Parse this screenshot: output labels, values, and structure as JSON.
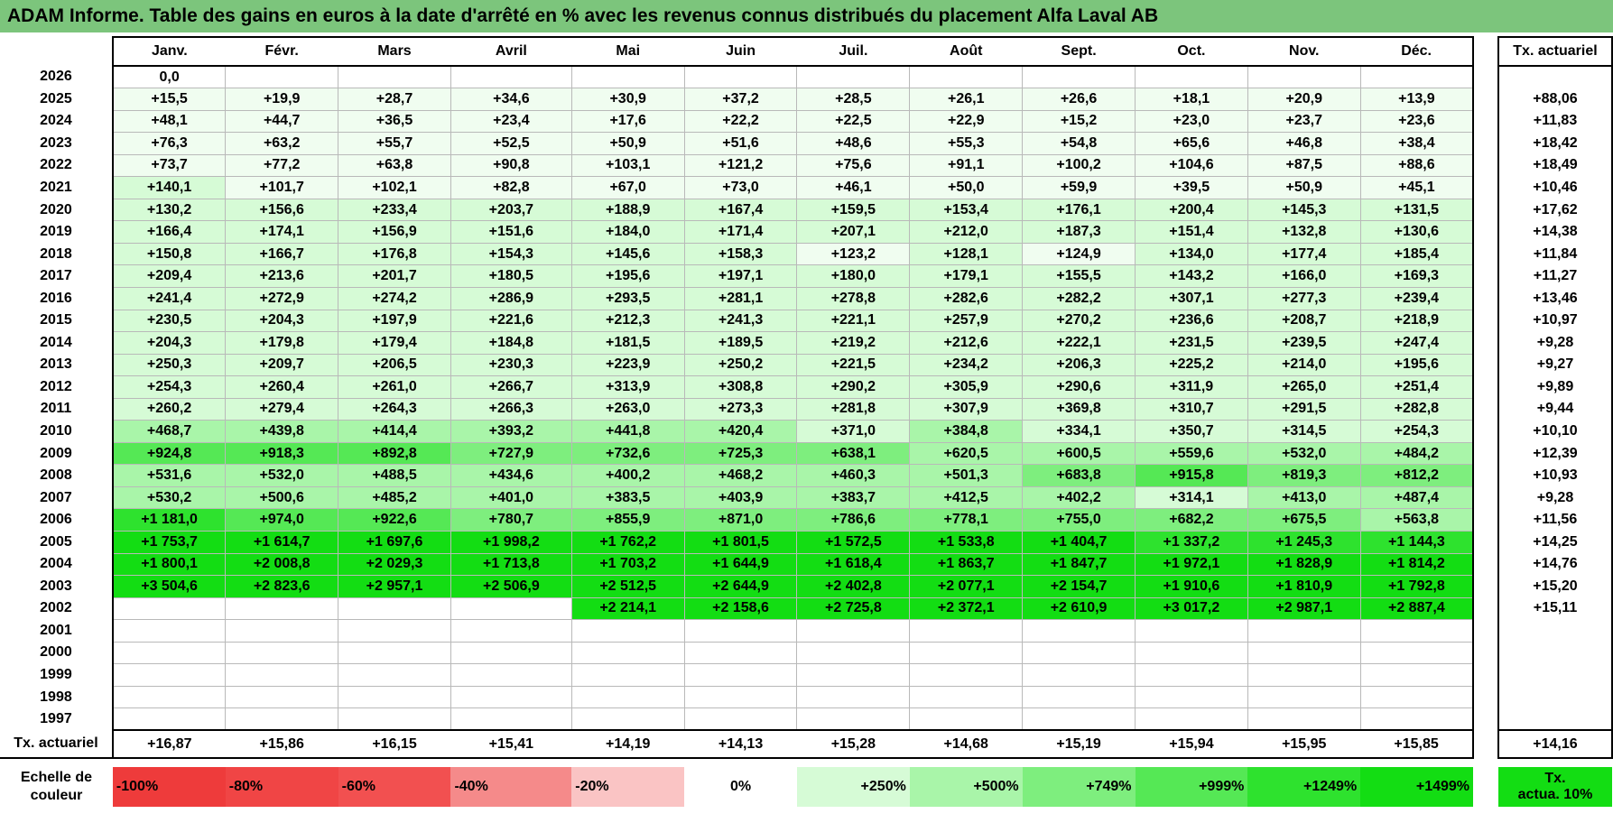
{
  "title": "ADAM Informe. Table des gains en euros à la date d'arrêté en % avec les revenus connus distribués du placement Alfa Laval AB",
  "months": [
    "Janv.",
    "Févr.",
    "Mars",
    "Avril",
    "Mai",
    "Juin",
    "Juil.",
    "Août",
    "Sept.",
    "Oct.",
    "Nov.",
    "Déc."
  ],
  "tx_header": "Tx. actuariel",
  "rows": [
    {
      "year": "2026",
      "values": [
        "0,0",
        "",
        "",
        "",
        "",
        "",
        "",
        "",
        "",
        "",
        "",
        ""
      ],
      "tx": ""
    },
    {
      "year": "2025",
      "values": [
        "+15,5",
        "+19,9",
        "+28,7",
        "+34,6",
        "+30,9",
        "+37,2",
        "+28,5",
        "+26,1",
        "+26,6",
        "+18,1",
        "+20,9",
        "+13,9"
      ],
      "tx": "+88,06"
    },
    {
      "year": "2024",
      "values": [
        "+48,1",
        "+44,7",
        "+36,5",
        "+23,4",
        "+17,6",
        "+22,2",
        "+22,5",
        "+22,9",
        "+15,2",
        "+23,0",
        "+23,7",
        "+23,6"
      ],
      "tx": "+11,83"
    },
    {
      "year": "2023",
      "values": [
        "+76,3",
        "+63,2",
        "+55,7",
        "+52,5",
        "+50,9",
        "+51,6",
        "+48,6",
        "+55,3",
        "+54,8",
        "+65,6",
        "+46,8",
        "+38,4"
      ],
      "tx": "+18,42"
    },
    {
      "year": "2022",
      "values": [
        "+73,7",
        "+77,2",
        "+63,8",
        "+90,8",
        "+103,1",
        "+121,2",
        "+75,6",
        "+91,1",
        "+100,2",
        "+104,6",
        "+87,5",
        "+88,6"
      ],
      "tx": "+18,49"
    },
    {
      "year": "2021",
      "values": [
        "+140,1",
        "+101,7",
        "+102,1",
        "+82,8",
        "+67,0",
        "+73,0",
        "+46,1",
        "+50,0",
        "+59,9",
        "+39,5",
        "+50,9",
        "+45,1"
      ],
      "tx": "+10,46"
    },
    {
      "year": "2020",
      "values": [
        "+130,2",
        "+156,6",
        "+233,4",
        "+203,7",
        "+188,9",
        "+167,4",
        "+159,5",
        "+153,4",
        "+176,1",
        "+200,4",
        "+145,3",
        "+131,5"
      ],
      "tx": "+17,62"
    },
    {
      "year": "2019",
      "values": [
        "+166,4",
        "+174,1",
        "+156,9",
        "+151,6",
        "+184,0",
        "+171,4",
        "+207,1",
        "+212,0",
        "+187,3",
        "+151,4",
        "+132,8",
        "+130,6"
      ],
      "tx": "+14,38"
    },
    {
      "year": "2018",
      "values": [
        "+150,8",
        "+166,7",
        "+176,8",
        "+154,3",
        "+145,6",
        "+158,3",
        "+123,2",
        "+128,1",
        "+124,9",
        "+134,0",
        "+177,4",
        "+185,4"
      ],
      "tx": "+11,84"
    },
    {
      "year": "2017",
      "values": [
        "+209,4",
        "+213,6",
        "+201,7",
        "+180,5",
        "+195,6",
        "+197,1",
        "+180,0",
        "+179,1",
        "+155,5",
        "+143,2",
        "+166,0",
        "+169,3"
      ],
      "tx": "+11,27"
    },
    {
      "year": "2016",
      "values": [
        "+241,4",
        "+272,9",
        "+274,2",
        "+286,9",
        "+293,5",
        "+281,1",
        "+278,8",
        "+282,6",
        "+282,2",
        "+307,1",
        "+277,3",
        "+239,4"
      ],
      "tx": "+13,46"
    },
    {
      "year": "2015",
      "values": [
        "+230,5",
        "+204,3",
        "+197,9",
        "+221,6",
        "+212,3",
        "+241,3",
        "+221,1",
        "+257,9",
        "+270,2",
        "+236,6",
        "+208,7",
        "+218,9"
      ],
      "tx": "+10,97"
    },
    {
      "year": "2014",
      "values": [
        "+204,3",
        "+179,8",
        "+179,4",
        "+184,8",
        "+181,5",
        "+189,5",
        "+219,2",
        "+212,6",
        "+222,1",
        "+231,5",
        "+239,5",
        "+247,4"
      ],
      "tx": "+9,28"
    },
    {
      "year": "2013",
      "values": [
        "+250,3",
        "+209,7",
        "+206,5",
        "+230,3",
        "+223,9",
        "+250,2",
        "+221,5",
        "+234,2",
        "+206,3",
        "+225,2",
        "+214,0",
        "+195,6"
      ],
      "tx": "+9,27"
    },
    {
      "year": "2012",
      "values": [
        "+254,3",
        "+260,4",
        "+261,0",
        "+266,7",
        "+313,9",
        "+308,8",
        "+290,2",
        "+305,9",
        "+290,6",
        "+311,9",
        "+265,0",
        "+251,4"
      ],
      "tx": "+9,89"
    },
    {
      "year": "2011",
      "values": [
        "+260,2",
        "+279,4",
        "+264,3",
        "+266,3",
        "+263,0",
        "+273,3",
        "+281,8",
        "+307,9",
        "+369,8",
        "+310,7",
        "+291,5",
        "+282,8"
      ],
      "tx": "+9,44"
    },
    {
      "year": "2010",
      "values": [
        "+468,7",
        "+439,8",
        "+414,4",
        "+393,2",
        "+441,8",
        "+420,4",
        "+371,0",
        "+384,8",
        "+334,1",
        "+350,7",
        "+314,5",
        "+254,3"
      ],
      "tx": "+10,10"
    },
    {
      "year": "2009",
      "values": [
        "+924,8",
        "+918,3",
        "+892,8",
        "+727,9",
        "+732,6",
        "+725,3",
        "+638,1",
        "+620,5",
        "+600,5",
        "+559,6",
        "+532,0",
        "+484,2"
      ],
      "tx": "+12,39"
    },
    {
      "year": "2008",
      "values": [
        "+531,6",
        "+532,0",
        "+488,5",
        "+434,6",
        "+400,2",
        "+468,2",
        "+460,3",
        "+501,3",
        "+683,8",
        "+915,8",
        "+819,3",
        "+812,2"
      ],
      "tx": "+10,93"
    },
    {
      "year": "2007",
      "values": [
        "+530,2",
        "+500,6",
        "+485,2",
        "+401,0",
        "+383,5",
        "+403,9",
        "+383,7",
        "+412,5",
        "+402,2",
        "+314,1",
        "+413,0",
        "+487,4"
      ],
      "tx": "+9,28"
    },
    {
      "year": "2006",
      "values": [
        "+1 181,0",
        "+974,0",
        "+922,6",
        "+780,7",
        "+855,9",
        "+871,0",
        "+786,6",
        "+778,1",
        "+755,0",
        "+682,2",
        "+675,5",
        "+563,8"
      ],
      "tx": "+11,56"
    },
    {
      "year": "2005",
      "values": [
        "+1 753,7",
        "+1 614,7",
        "+1 697,6",
        "+1 998,2",
        "+1 762,2",
        "+1 801,5",
        "+1 572,5",
        "+1 533,8",
        "+1 404,7",
        "+1 337,2",
        "+1 245,3",
        "+1 144,3"
      ],
      "tx": "+14,25"
    },
    {
      "year": "2004",
      "values": [
        "+1 800,1",
        "+2 008,8",
        "+2 029,3",
        "+1 713,8",
        "+1 703,2",
        "+1 644,9",
        "+1 618,4",
        "+1 863,7",
        "+1 847,7",
        "+1 972,1",
        "+1 828,9",
        "+1 814,2"
      ],
      "tx": "+14,76"
    },
    {
      "year": "2003",
      "values": [
        "+3 504,6",
        "+2 823,6",
        "+2 957,1",
        "+2 506,9",
        "+2 512,5",
        "+2 644,9",
        "+2 402,8",
        "+2 077,1",
        "+2 154,7",
        "+1 910,6",
        "+1 810,9",
        "+1 792,8"
      ],
      "tx": "+15,20"
    },
    {
      "year": "2002",
      "values": [
        "",
        "",
        "",
        "",
        "+2 214,1",
        "+2 158,6",
        "+2 725,8",
        "+2 372,1",
        "+2 610,9",
        "+3 017,2",
        "+2 987,1",
        "+2 887,4"
      ],
      "tx": "+15,11"
    },
    {
      "year": "2001",
      "values": [
        "",
        "",
        "",
        "",
        "",
        "",
        "",
        "",
        "",
        "",
        "",
        ""
      ],
      "tx": ""
    },
    {
      "year": "2000",
      "values": [
        "",
        "",
        "",
        "",
        "",
        "",
        "",
        "",
        "",
        "",
        "",
        ""
      ],
      "tx": ""
    },
    {
      "year": "1999",
      "values": [
        "",
        "",
        "",
        "",
        "",
        "",
        "",
        "",
        "",
        "",
        "",
        ""
      ],
      "tx": ""
    },
    {
      "year": "1998",
      "values": [
        "",
        "",
        "",
        "",
        "",
        "",
        "",
        "",
        "",
        "",
        "",
        ""
      ],
      "tx": ""
    },
    {
      "year": "1997",
      "values": [
        "",
        "",
        "",
        "",
        "",
        "",
        "",
        "",
        "",
        "",
        "",
        ""
      ],
      "tx": ""
    }
  ],
  "annual": {
    "label": "Tx. actuariel",
    "values": [
      "+16,87",
      "+15,86",
      "+16,15",
      "+15,41",
      "+14,19",
      "+14,13",
      "+15,28",
      "+14,68",
      "+15,19",
      "+15,94",
      "+15,95",
      "+15,85"
    ],
    "tx": "+14,16"
  },
  "scale": {
    "label_line1": "Echelle de",
    "label_line2": "couleur",
    "swatches": [
      {
        "label": "-100%",
        "color": "#ee3b3b"
      },
      {
        "label": "-80%",
        "color": "#f04545"
      },
      {
        "label": "-60%",
        "color": "#f25050"
      },
      {
        "label": "-40%",
        "color": "#f58a8a"
      },
      {
        "label": "-20%",
        "color": "#fac4c4"
      },
      {
        "label": "0%",
        "color": "#ffffff"
      },
      {
        "label": "+250%",
        "color": "#d6fbd6"
      },
      {
        "label": "+500%",
        "color": "#a9f5a9"
      },
      {
        "label": "+749%",
        "color": "#7eee7e"
      },
      {
        "label": "+999%",
        "color": "#55e855"
      },
      {
        "label": "+1249%",
        "color": "#2ee22e"
      },
      {
        "label": "+1499%",
        "color": "#13dd13"
      }
    ],
    "tx_label_line1": "Tx.",
    "tx_label_line2": "actua. 10%",
    "tx_color": "#13dd13"
  }
}
